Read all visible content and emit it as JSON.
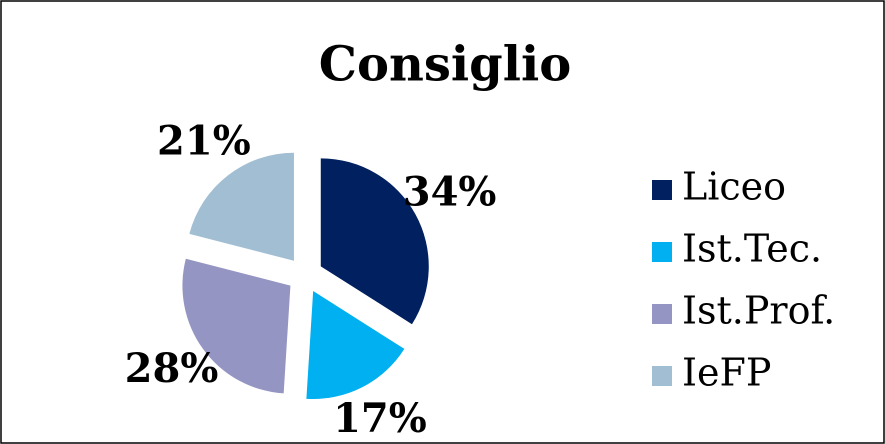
{
  "chart_data": {
    "type": "pie",
    "title": "Consiglio",
    "categories": [
      "Liceo",
      "Ist.Tec.",
      "Ist.Prof.",
      "IeFP"
    ],
    "values": [
      34,
      17,
      28,
      21
    ],
    "value_labels": [
      "34%",
      "17%",
      "28%",
      "21%"
    ],
    "colors": [
      "#002060",
      "#00b0f0",
      "#9595c3",
      "#a1bed3"
    ],
    "legend": "right"
  }
}
